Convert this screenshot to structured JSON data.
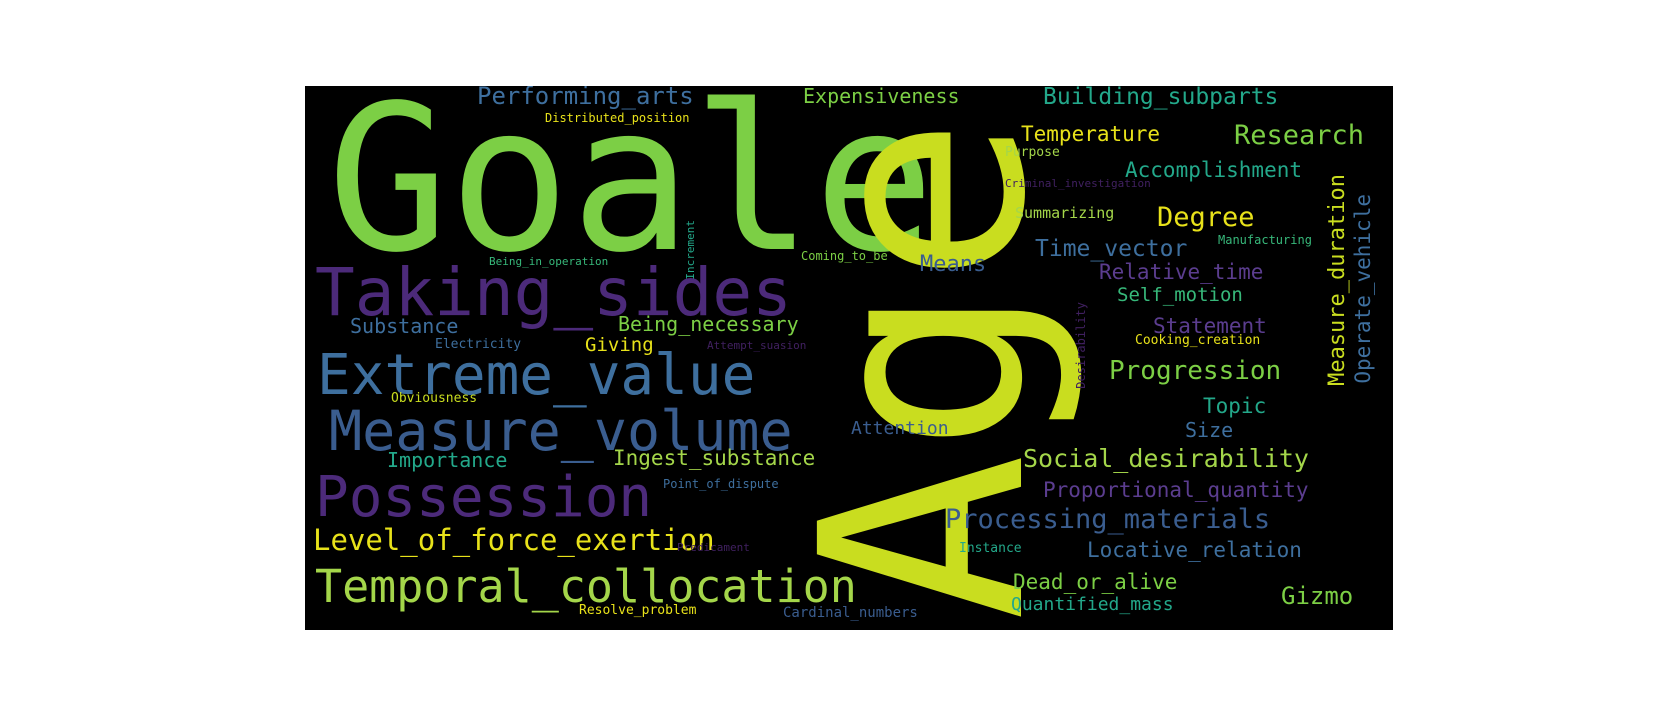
{
  "colors": {
    "background": "#000000",
    "page": "#ffffff",
    "lime": "#c9dd1f",
    "green": "#7ccf45",
    "light_green": "#a4d64a",
    "yellow": "#e8e21a",
    "teal": "#23a88a",
    "teal_green": "#37b87a",
    "blue": "#3e6f9e",
    "steel_blue": "#3a5d8f",
    "purple": "#4c2a7a",
    "violet": "#5b3d8f",
    "dark_purple": "#402060"
  },
  "words": {
    "goale": "Goale",
    "age": "Age",
    "taking_sides": "Taking_sides",
    "extreme_value": "Extreme_value",
    "measure_volume": "Measure_volume",
    "possession": "Possession",
    "level_of_force_exertion": "Level_of_force_exertion",
    "temporal_collocation": "Temporal_collocation",
    "performing_arts": "Performing_arts",
    "expensiveness": "Expensiveness",
    "distributed_position": "Distributed_position",
    "building_subparts": "Building_subparts",
    "temperature": "Temperature",
    "research": "Research",
    "purpose": "Purpose",
    "accomplishment": "Accomplishment",
    "criminal_investigation": "Criminal_investigation",
    "summarizing": "Summarizing",
    "degree": "Degree",
    "manufacturing": "Manufacturing",
    "time_vector": "Time_vector",
    "coming_to_be": "Coming_to_be",
    "means": "Means",
    "being_in_operation": "Being_in_operation",
    "increment": "Increment",
    "relative_time": "Relative_time",
    "self_motion": "Self_motion",
    "substance": "Substance",
    "being_necessary": "Being_necessary",
    "statement": "Statement",
    "electricity": "Electricity",
    "giving": "Giving",
    "attempt_suasion": "Attempt_suasion",
    "cooking_creation": "Cooking_creation",
    "progression": "Progression",
    "measure_duration": "Measure_duration",
    "operate_vehicle": "Operate_vehicle",
    "desirability": "Desirability",
    "obviousness": "Obviousness",
    "topic": "Topic",
    "attention": "Attention",
    "size": "Size",
    "importance": "Importance",
    "ingest_substance": "Ingest_substance",
    "social_desirability": "Social_desirability",
    "point_of_dispute": "Point_of_dispute",
    "proportional_quantity": "Proportional_quantity",
    "processing_materials": "Processing_materials",
    "predicament": "Predicament",
    "instance": "Instance",
    "locative_relation": "Locative_relation",
    "dead_or_alive": "Dead_or_alive",
    "gizmo": "Gizmo",
    "resolve_problem": "Resolve_problem",
    "cardinal_numbers": "Cardinal_numbers",
    "quantified_mass": "Quantified_mass"
  }
}
